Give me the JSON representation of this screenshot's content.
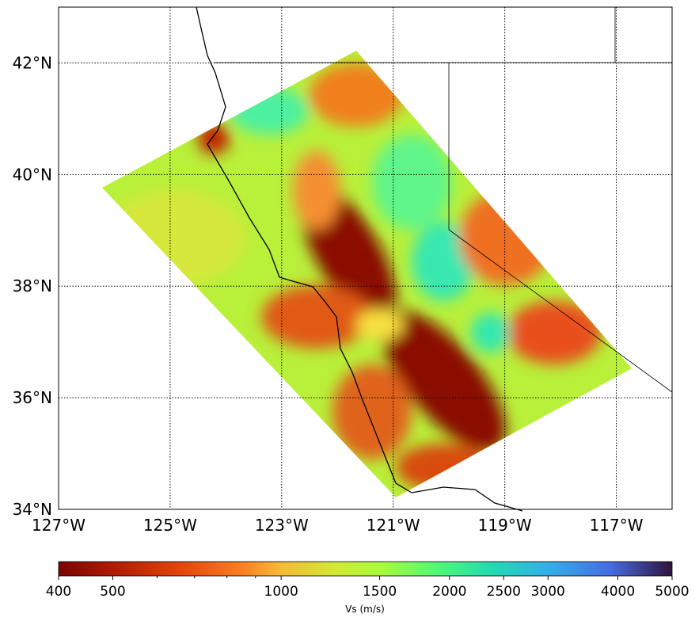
{
  "map": {
    "type": "map",
    "xlim": [
      -127,
      -116
    ],
    "ylim": [
      34,
      43
    ],
    "xticks": [
      {
        "value": -127,
        "label": "127°W"
      },
      {
        "value": -125,
        "label": "125°W"
      },
      {
        "value": -123,
        "label": "123°W"
      },
      {
        "value": -121,
        "label": "121°W"
      },
      {
        "value": -119,
        "label": "119°W"
      },
      {
        "value": -117,
        "label": "117°W"
      }
    ],
    "yticks": [
      {
        "value": 34,
        "label": "34°N"
      },
      {
        "value": 36,
        "label": "36°N"
      },
      {
        "value": 38,
        "label": "38°N"
      },
      {
        "value": 40,
        "label": "40°N"
      },
      {
        "value": 42,
        "label": "42°N"
      }
    ],
    "grid": true
  },
  "colorbar": {
    "label": "Vs (m/s)",
    "scale": "log",
    "lim": [
      400,
      5000
    ],
    "ticks": [
      400,
      500,
      1000,
      1500,
      2000,
      2500,
      3000,
      4000,
      5000
    ],
    "minor_ticks": [
      600,
      700,
      800,
      900
    ]
  }
}
